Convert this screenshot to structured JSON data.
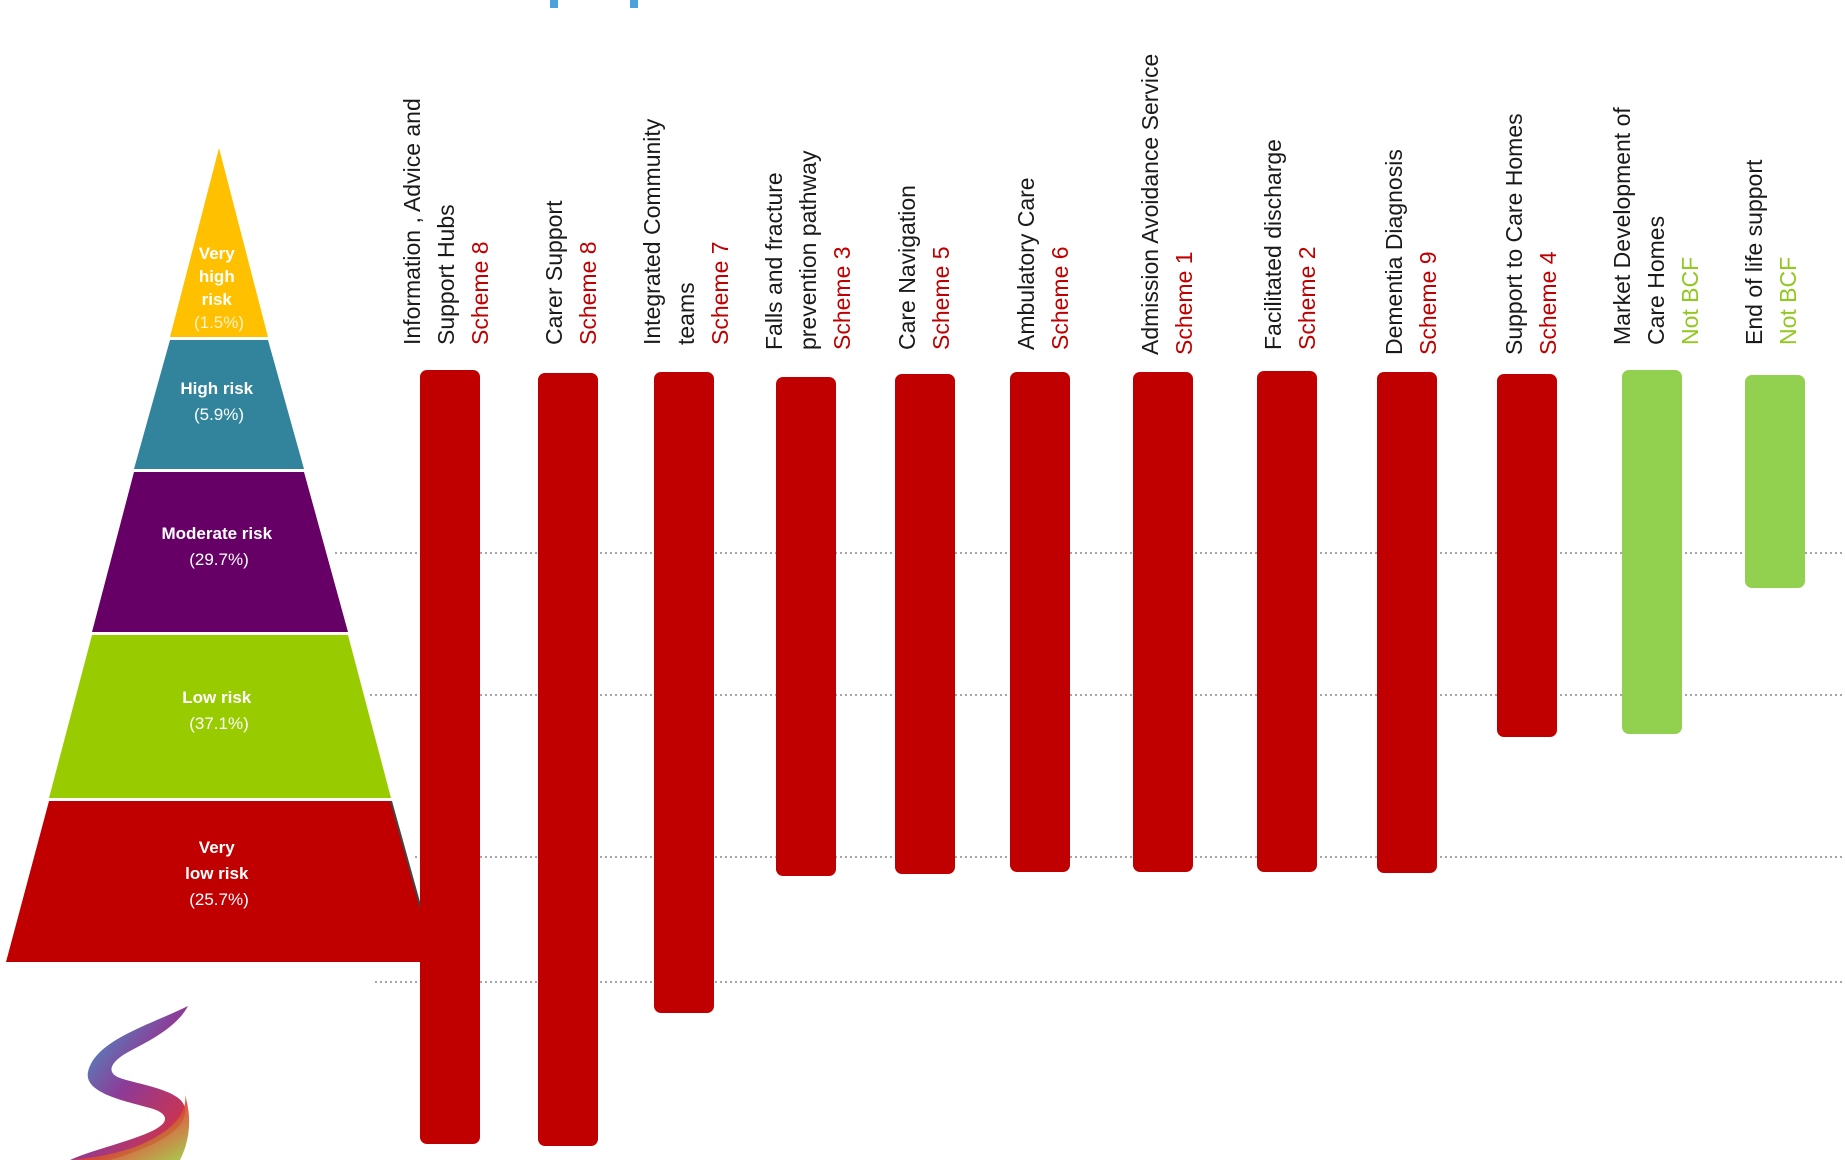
{
  "pyramid": {
    "tiers": [
      {
        "name_lines": [
          "Very",
          "high",
          "risk"
        ],
        "percent": "(1.5%)",
        "color": "#ffc000"
      },
      {
        "name_lines": [
          "High risk"
        ],
        "percent": "(5.9%)",
        "color": "#31849b"
      },
      {
        "name_lines": [
          "Moderate risk"
        ],
        "percent": "(29.7%)",
        "color": "#660066"
      },
      {
        "name_lines": [
          "Low risk"
        ],
        "percent": "(37.1%)",
        "color": "#99cc00"
      },
      {
        "name_lines": [
          "Very",
          "low risk"
        ],
        "percent": "(25.7%)",
        "color": "#c00000"
      }
    ]
  },
  "colors": {
    "scheme": "#c00000",
    "not_bcf": "#92d050",
    "title_text": "#1a1a1a",
    "guide_line": "#888888"
  },
  "columns": [
    {
      "title_lines": [
        "Information , Advice and",
        "Support Hubs"
      ],
      "sub": "Scheme 8",
      "bcf": true,
      "span": [
        "High risk",
        "below pyramid"
      ]
    },
    {
      "title_lines": [
        "Carer Support"
      ],
      "sub": "Scheme 8",
      "bcf": true,
      "span": [
        "High risk",
        "below pyramid"
      ]
    },
    {
      "title_lines": [
        "Integrated Community",
        "teams"
      ],
      "sub": "Scheme 7",
      "bcf": true,
      "span": [
        "High risk",
        "Very low risk"
      ]
    },
    {
      "title_lines": [
        "Falls and fracture",
        "prevention pathway"
      ],
      "sub": "Scheme 3",
      "bcf": true,
      "span": [
        "High risk",
        "Low risk"
      ]
    },
    {
      "title_lines": [
        "Care Navigation"
      ],
      "sub": "Scheme 5",
      "bcf": true,
      "span": [
        "High risk",
        "Low risk"
      ]
    },
    {
      "title_lines": [
        "Ambulatory Care"
      ],
      "sub": "Scheme 6",
      "bcf": true,
      "span": [
        "High risk",
        "Low risk"
      ]
    },
    {
      "title_lines": [
        "Admission Avoidance Service"
      ],
      "sub": "Scheme 1",
      "bcf": true,
      "span": [
        "High risk",
        "Low risk"
      ]
    },
    {
      "title_lines": [
        "Facilitated discharge"
      ],
      "sub": "Scheme 2",
      "bcf": true,
      "span": [
        "High risk",
        "Low risk"
      ]
    },
    {
      "title_lines": [
        "Dementia Diagnosis"
      ],
      "sub": "Scheme 9",
      "bcf": true,
      "span": [
        "High risk",
        "Low risk"
      ]
    },
    {
      "title_lines": [
        "Support to Care Homes"
      ],
      "sub": "Scheme 4",
      "bcf": true,
      "span": [
        "High risk",
        "Moderate risk"
      ]
    },
    {
      "title_lines": [
        "Market Development of",
        "Care Homes"
      ],
      "sub": "Not BCF",
      "bcf": false,
      "span": [
        "High risk",
        "Moderate risk"
      ]
    },
    {
      "title_lines": [
        "End of life support"
      ],
      "sub": "Not BCF",
      "bcf": false,
      "span": [
        "High risk",
        "High risk"
      ]
    }
  ]
}
